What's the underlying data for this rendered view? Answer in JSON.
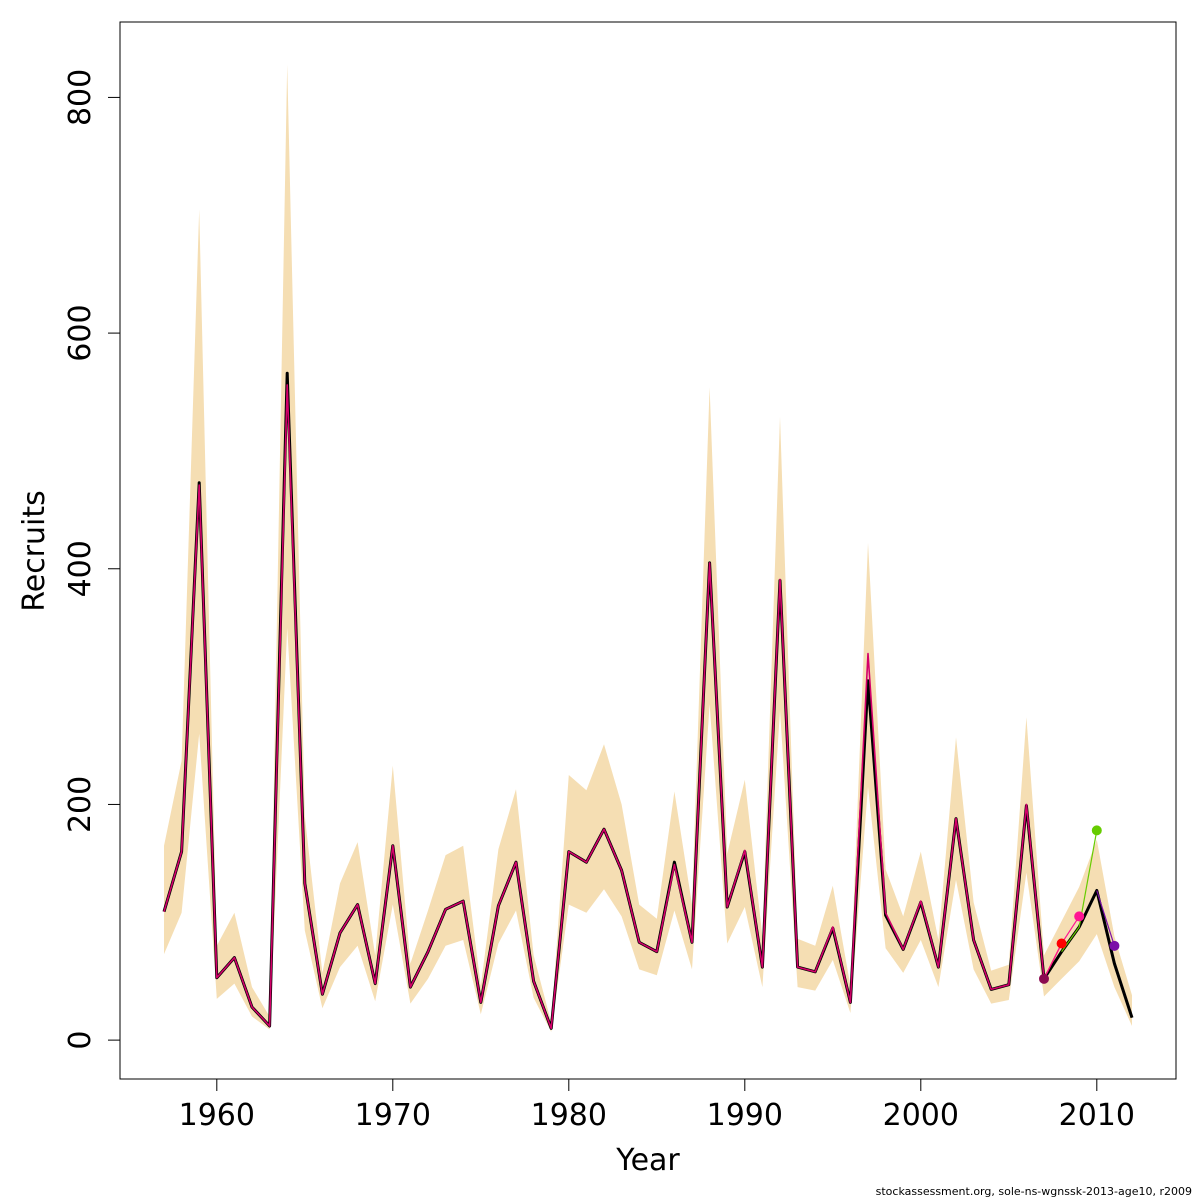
{
  "chart_data": {
    "type": "line",
    "xlabel": "Year",
    "ylabel": "Recruits",
    "xlim": [
      1954.5,
      2014.5
    ],
    "ylim": [
      -33,
      864
    ],
    "x_ticks": [
      1960,
      1970,
      1980,
      1990,
      2000,
      2010
    ],
    "y_ticks": [
      0,
      200,
      400,
      600,
      800
    ],
    "grid": false,
    "legend": "none",
    "colors": {
      "band": "#f5deb3",
      "estimate": "#000000",
      "retro_line": "#d4006a",
      "points": [
        "#8b0a50",
        "#ff0000",
        "#ff1493",
        "#66cc00",
        "#7b10a8"
      ]
    },
    "years": [
      1957,
      1958,
      1959,
      1960,
      1961,
      1962,
      1963,
      1964,
      1965,
      1966,
      1967,
      1968,
      1969,
      1970,
      1971,
      1972,
      1973,
      1974,
      1975,
      1976,
      1977,
      1978,
      1979,
      1980,
      1981,
      1982,
      1983,
      1984,
      1985,
      1986,
      1987,
      1988,
      1989,
      1990,
      1991,
      1992,
      1993,
      1994,
      1995,
      1996,
      1997,
      1998,
      1999,
      2000,
      2001,
      2002,
      2003,
      2004,
      2005,
      2006,
      2007,
      2008,
      2009,
      2010,
      2011,
      2012
    ],
    "estimate": [
      109,
      160,
      473,
      53,
      70,
      28,
      12,
      566,
      133,
      39,
      91,
      115,
      48,
      165,
      45,
      75,
      111,
      118,
      32,
      114,
      151,
      50,
      10,
      160,
      151,
      179,
      144,
      83,
      75,
      151,
      83,
      405,
      113,
      160,
      62,
      390,
      62,
      58,
      95,
      32,
      305,
      106,
      77,
      117,
      62,
      188,
      85,
      43,
      47,
      199,
      52,
      75,
      96,
      127,
      65,
      19
    ],
    "band_lower": [
      73,
      108,
      260,
      35,
      48,
      20,
      9,
      350,
      93,
      27,
      62,
      80,
      33,
      115,
      31,
      52,
      80,
      85,
      22,
      82,
      110,
      36,
      7,
      115,
      108,
      128,
      105,
      60,
      55,
      110,
      60,
      285,
      82,
      113,
      45,
      280,
      45,
      42,
      68,
      23,
      215,
      78,
      57,
      85,
      45,
      136,
      60,
      31,
      34,
      142,
      37,
      52,
      67,
      90,
      45,
      12
    ],
    "band_upper": [
      165,
      237,
      705,
      80,
      108,
      45,
      20,
      828,
      190,
      57,
      133,
      168,
      72,
      233,
      65,
      110,
      157,
      165,
      46,
      162,
      213,
      72,
      15,
      225,
      212,
      251,
      200,
      115,
      103,
      211,
      115,
      554,
      158,
      221,
      88,
      529,
      86,
      80,
      131,
      46,
      422,
      145,
      105,
      160,
      85,
      257,
      117,
      59,
      64,
      274,
      72,
      101,
      130,
      170,
      88,
      38
    ],
    "retro_series": {
      "years": [
        1957,
        1958,
        1959,
        1960,
        1961,
        1962,
        1963,
        1964,
        1965,
        1966,
        1967,
        1968,
        1969,
        1970,
        1971,
        1972,
        1973,
        1974,
        1975,
        1976,
        1977,
        1978,
        1979,
        1980,
        1981,
        1982,
        1983,
        1984,
        1985,
        1986,
        1987,
        1988,
        1989,
        1990,
        1991,
        1992,
        1993,
        1994,
        1995,
        1996,
        1997,
        1998,
        1999,
        2000,
        2001,
        2002,
        2003,
        2004,
        2005,
        2006,
        2007
      ],
      "values": [
        109,
        160,
        471,
        53,
        70,
        28,
        12,
        556,
        133,
        39,
        91,
        115,
        48,
        165,
        45,
        75,
        111,
        118,
        32,
        114,
        151,
        50,
        10,
        160,
        151,
        179,
        144,
        83,
        75,
        149,
        83,
        405,
        113,
        161,
        62,
        391,
        62,
        58,
        96,
        32,
        328,
        108,
        77,
        118,
        62,
        188,
        85,
        43,
        47,
        200,
        52
      ]
    },
    "retro_tails": [
      {
        "years": [
          2007,
          2008
        ],
        "values": [
          52,
          82
        ]
      },
      {
        "years": [
          2007,
          2008,
          2009
        ],
        "values": [
          52,
          82,
          105
        ]
      },
      {
        "years": [
          2008,
          2009,
          2010
        ],
        "values": [
          75,
          96,
          178
        ]
      },
      {
        "years": [
          2010,
          2011
        ],
        "values": [
          127,
          80
        ]
      }
    ],
    "end_points": [
      {
        "year": 2007,
        "value": 52
      },
      {
        "year": 2008,
        "value": 82
      },
      {
        "year": 2009,
        "value": 105
      },
      {
        "year": 2010,
        "value": 178
      },
      {
        "year": 2011,
        "value": 80
      }
    ]
  },
  "footer": {
    "credit": "stockassessment.org, sole-ns-wgnssk-2013-age10, r2009"
  }
}
